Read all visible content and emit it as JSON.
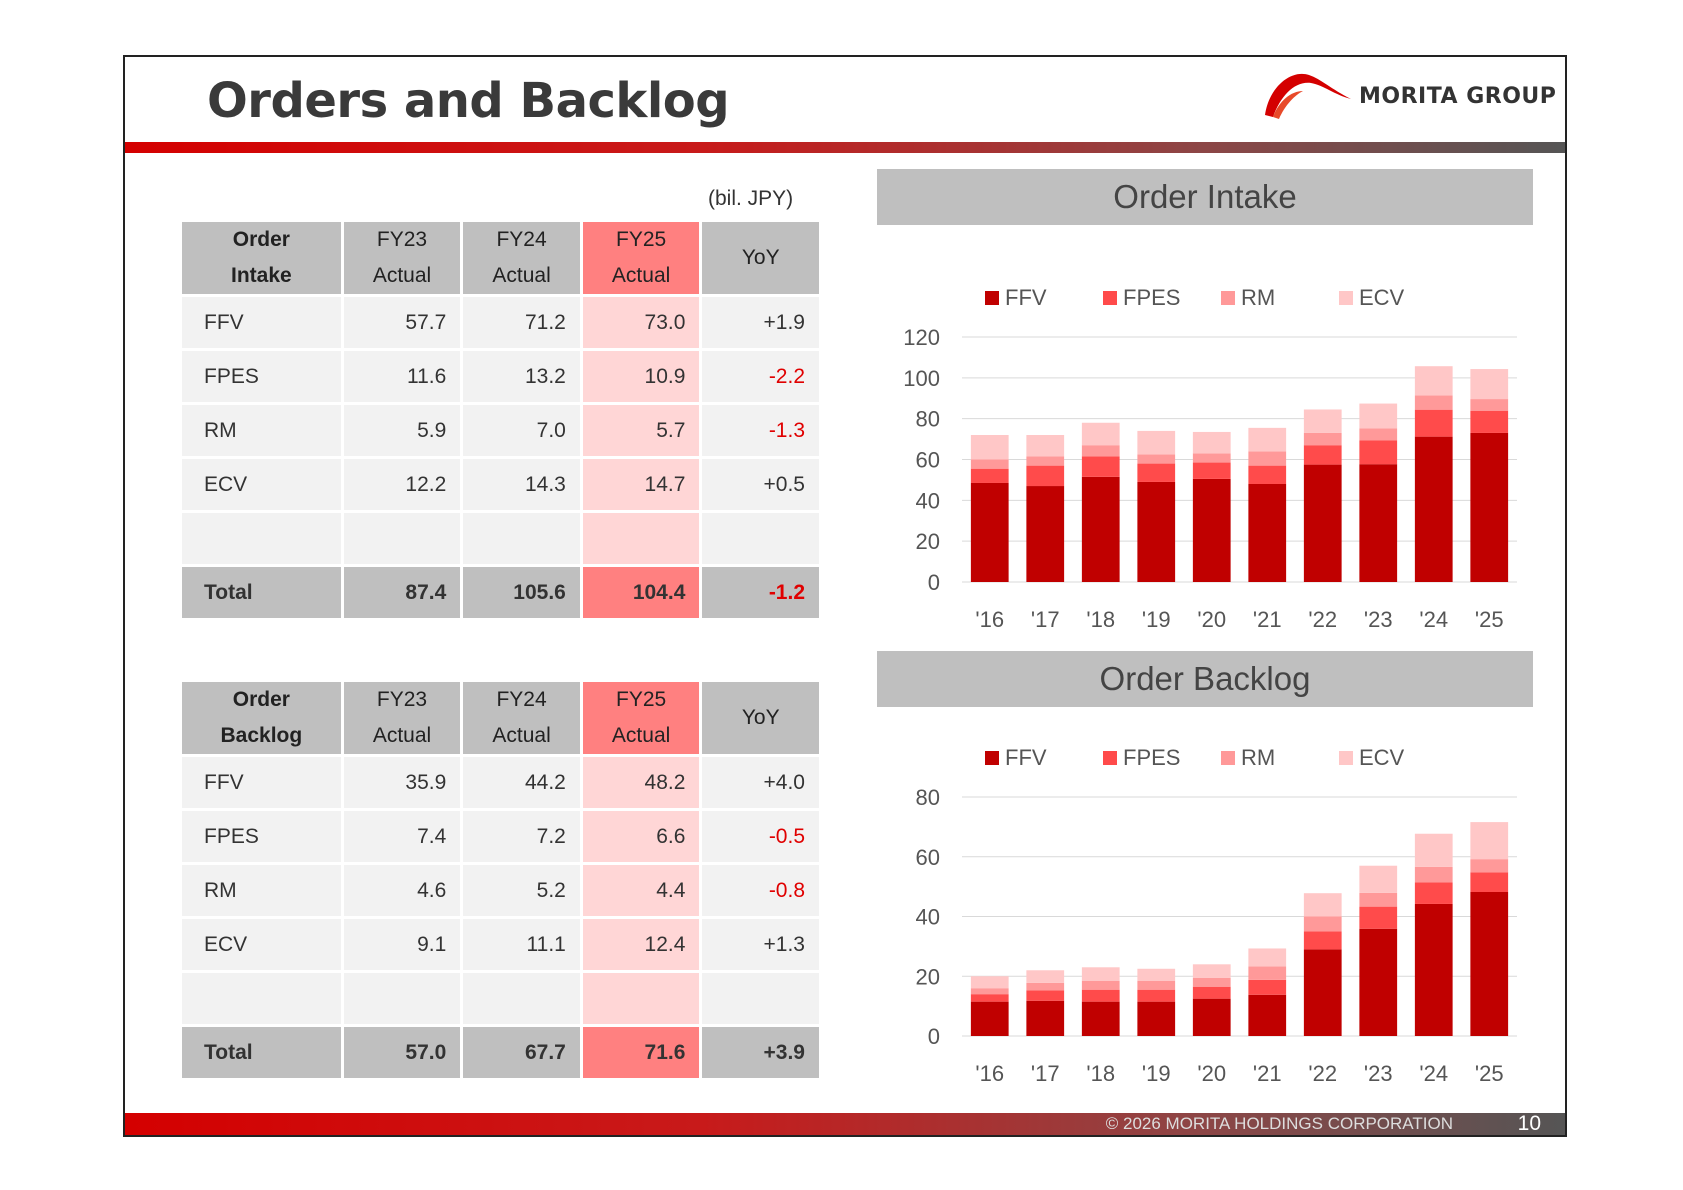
{
  "title": "Orders and Backlog",
  "logo": {
    "text": "MORITA GROUP"
  },
  "unit_note": "(bil. JPY)",
  "footer": {
    "copyright": "© 2026 MORITA HOLDINGS CORPORATION",
    "page": "10"
  },
  "colors": {
    "FFV": "#c00000",
    "FPES": "#ff4b4b",
    "RM": "#ff9999",
    "ECV": "#ffc7c7",
    "fy25_header": "#ff8080",
    "fy25_cell": "#ffd6d6",
    "negative": "#e00000"
  },
  "order_intake_table": {
    "label_line1": "Order",
    "label_line2": "Intake",
    "headers": [
      {
        "line1": "FY23",
        "line2": "Actual"
      },
      {
        "line1": "FY24",
        "line2": "Actual"
      },
      {
        "line1": "FY25",
        "line2": "Actual"
      },
      {
        "line1": "YoY",
        "line2": ""
      }
    ],
    "rows": [
      {
        "name": "FFV",
        "fy23": "57.7",
        "fy24": "71.2",
        "fy25": "73.0",
        "yoy": "+1.9"
      },
      {
        "name": "FPES",
        "fy23": "11.6",
        "fy24": "13.2",
        "fy25": "10.9",
        "yoy": "-2.2"
      },
      {
        "name": "RM",
        "fy23": "5.9",
        "fy24": "7.0",
        "fy25": "5.7",
        "yoy": "-1.3"
      },
      {
        "name": "ECV",
        "fy23": "12.2",
        "fy24": "14.3",
        "fy25": "14.7",
        "yoy": "+0.5"
      },
      {
        "name": "",
        "fy23": "",
        "fy24": "",
        "fy25": "",
        "yoy": ""
      }
    ],
    "total": {
      "name": "Total",
      "fy23": "87.4",
      "fy24": "105.6",
      "fy25": "104.4",
      "yoy": "-1.2"
    }
  },
  "order_backlog_table": {
    "label_line1": "Order",
    "label_line2": "Backlog",
    "headers": [
      {
        "line1": "FY23",
        "line2": "Actual"
      },
      {
        "line1": "FY24",
        "line2": "Actual"
      },
      {
        "line1": "FY25",
        "line2": "Actual"
      },
      {
        "line1": "YoY",
        "line2": ""
      }
    ],
    "rows": [
      {
        "name": "FFV",
        "fy23": "35.9",
        "fy24": "44.2",
        "fy25": "48.2",
        "yoy": "+4.0"
      },
      {
        "name": "FPES",
        "fy23": "7.4",
        "fy24": "7.2",
        "fy25": "6.6",
        "yoy": "-0.5"
      },
      {
        "name": "RM",
        "fy23": "4.6",
        "fy24": "5.2",
        "fy25": "4.4",
        "yoy": "-0.8"
      },
      {
        "name": "ECV",
        "fy23": "9.1",
        "fy24": "11.1",
        "fy25": "12.4",
        "yoy": "+1.3"
      },
      {
        "name": "",
        "fy23": "",
        "fy24": "",
        "fy25": "",
        "yoy": ""
      }
    ],
    "total": {
      "name": "Total",
      "fy23": "57.0",
      "fy24": "67.7",
      "fy25": "71.6",
      "yoy": "+3.9"
    }
  },
  "chart_data": [
    {
      "type": "bar",
      "stacked": true,
      "title": "Order Intake",
      "categories": [
        "'16",
        "'17",
        "'18",
        "'19",
        "'20",
        "'21",
        "'22",
        "'23",
        "'24",
        "'25"
      ],
      "series": [
        {
          "name": "FFV",
          "values": [
            48.5,
            47,
            51.5,
            49,
            50.5,
            48,
            57.5,
            57.7,
            71.2,
            73.0
          ]
        },
        {
          "name": "FPES",
          "values": [
            7,
            10,
            10,
            9,
            8,
            9,
            9.5,
            11.6,
            13.2,
            10.9
          ]
        },
        {
          "name": "RM",
          "values": [
            4.5,
            4.5,
            5.5,
            4.5,
            4.5,
            7,
            6,
            5.9,
            7.0,
            5.7
          ]
        },
        {
          "name": "ECV",
          "values": [
            12,
            10.5,
            11,
            11.5,
            10.5,
            11.5,
            11.5,
            12.2,
            14.3,
            14.7
          ]
        }
      ],
      "ylim": [
        0,
        120
      ],
      "yticks": [
        0,
        20,
        40,
        60,
        80,
        100,
        120
      ],
      "grid": true,
      "legend": "top"
    },
    {
      "type": "bar",
      "stacked": true,
      "title": "Order Backlog",
      "categories": [
        "'16",
        "'17",
        "'18",
        "'19",
        "'20",
        "'21",
        "'22",
        "'23",
        "'24",
        "'25"
      ],
      "series": [
        {
          "name": "FFV",
          "values": [
            11.5,
            11.8,
            11.5,
            11.5,
            12.5,
            13.8,
            29,
            35.9,
            44.2,
            48.2
          ]
        },
        {
          "name": "FPES",
          "values": [
            2.5,
            3.5,
            4,
            4,
            4,
            5,
            6,
            7.4,
            7.2,
            6.6
          ]
        },
        {
          "name": "RM",
          "values": [
            2,
            2.5,
            3,
            3,
            3,
            4.5,
            5,
            4.6,
            5.2,
            4.4
          ]
        },
        {
          "name": "ECV",
          "values": [
            4,
            4.2,
            4.5,
            4,
            4.5,
            6,
            7.8,
            9.1,
            11.1,
            12.4
          ]
        }
      ],
      "ylim": [
        0,
        80
      ],
      "yticks": [
        0,
        20,
        40,
        60,
        80
      ],
      "grid": true,
      "legend": "top"
    }
  ]
}
